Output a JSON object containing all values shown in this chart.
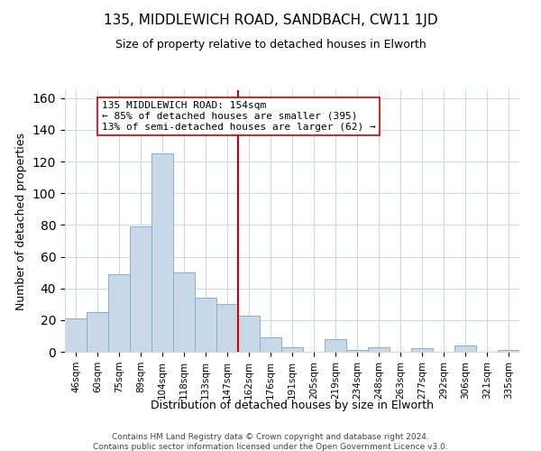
{
  "title": "135, MIDDLEWICH ROAD, SANDBACH, CW11 1JD",
  "subtitle": "Size of property relative to detached houses in Elworth",
  "xlabel": "Distribution of detached houses by size in Elworth",
  "ylabel": "Number of detached properties",
  "bar_labels": [
    "46sqm",
    "60sqm",
    "75sqm",
    "89sqm",
    "104sqm",
    "118sqm",
    "133sqm",
    "147sqm",
    "162sqm",
    "176sqm",
    "191sqm",
    "205sqm",
    "219sqm",
    "234sqm",
    "248sqm",
    "263sqm",
    "277sqm",
    "292sqm",
    "306sqm",
    "321sqm",
    "335sqm"
  ],
  "bar_values": [
    21,
    25,
    49,
    79,
    125,
    50,
    34,
    30,
    23,
    9,
    3,
    0,
    8,
    1,
    3,
    0,
    2,
    0,
    4,
    0,
    1
  ],
  "bar_color": "#c8d8e8",
  "bar_edge_color": "#8ab0cc",
  "vline_x": 7.5,
  "vline_color": "#cc0000",
  "annotation_title": "135 MIDDLEWICH ROAD: 154sqm",
  "annotation_line1": "← 85% of detached houses are smaller (395)",
  "annotation_line2": "13% of semi-detached houses are larger (62) →",
  "annotation_box_color": "#ffffff",
  "annotation_box_edge": "#cc0000",
  "ylim": [
    0,
    165
  ],
  "footer1": "Contains HM Land Registry data © Crown copyright and database right 2024.",
  "footer2": "Contains public sector information licensed under the Open Government Licence v3.0.",
  "background_color": "#ffffff",
  "grid_color": "#d0d8e0",
  "title_fontsize": 11,
  "subtitle_fontsize": 9,
  "axis_label_fontsize": 9,
  "tick_fontsize": 7.5,
  "annotation_fontsize": 8,
  "footer_fontsize": 6.5
}
